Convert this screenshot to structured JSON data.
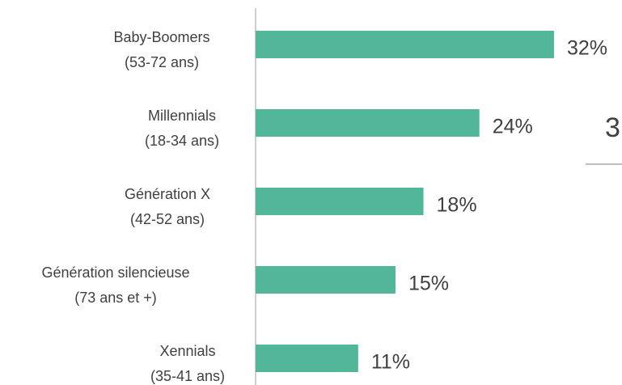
{
  "chart_data": {
    "type": "bar",
    "orientation": "horizontal",
    "categories": [
      [
        "Baby-Boomers",
        "(53-72 ans)"
      ],
      [
        "Millennials",
        "(18-34 ans)"
      ],
      [
        "Génération X",
        "(42-52 ans)"
      ],
      [
        "Génération silencieuse",
        "(73 ans et +)"
      ],
      [
        "Xennials",
        "(35-41 ans)"
      ]
    ],
    "values": [
      32,
      24,
      18,
      15,
      11
    ],
    "value_labels": [
      "32%",
      "24%",
      "18%",
      "15%",
      "11%"
    ],
    "color": "#52b798",
    "annotation": "3"
  }
}
